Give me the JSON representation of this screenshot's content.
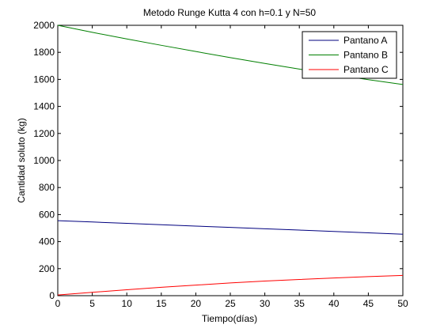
{
  "colors": {
    "background": "#ffffff",
    "axis": "#000000",
    "series": [
      "#00007f",
      "#007f00",
      "#ff0000"
    ]
  },
  "chart_data": {
    "type": "line",
    "title": "Metodo Runge Kutta 4 con h=0.1 y N=50",
    "xlabel": "Tiempo(días)",
    "ylabel": "Cantidad soluto (kg)",
    "xlim": [
      0,
      50
    ],
    "ylim": [
      0,
      2000
    ],
    "xticks": [
      0,
      5,
      10,
      15,
      20,
      25,
      30,
      35,
      40,
      45,
      50
    ],
    "yticks": [
      0,
      200,
      400,
      600,
      800,
      1000,
      1200,
      1400,
      1600,
      1800,
      2000
    ],
    "grid": false,
    "legend_position": "top-right",
    "x": [
      0,
      5,
      10,
      15,
      20,
      25,
      30,
      35,
      40,
      45,
      50
    ],
    "series": [
      {
        "name": "Pantano A",
        "color": "#00007f",
        "values": [
          555,
          545,
          535,
          525,
          515,
          505,
          495,
          485,
          475,
          465,
          455
        ]
      },
      {
        "name": "Pantano B",
        "color": "#007f00",
        "values": [
          2000,
          1948,
          1899,
          1852,
          1806,
          1761,
          1718,
          1676,
          1636,
          1598,
          1562
        ]
      },
      {
        "name": "Pantano C",
        "color": "#ff0000",
        "values": [
          5,
          25,
          44,
          62,
          78,
          94,
          108,
          120,
          131,
          141,
          150
        ]
      }
    ]
  }
}
